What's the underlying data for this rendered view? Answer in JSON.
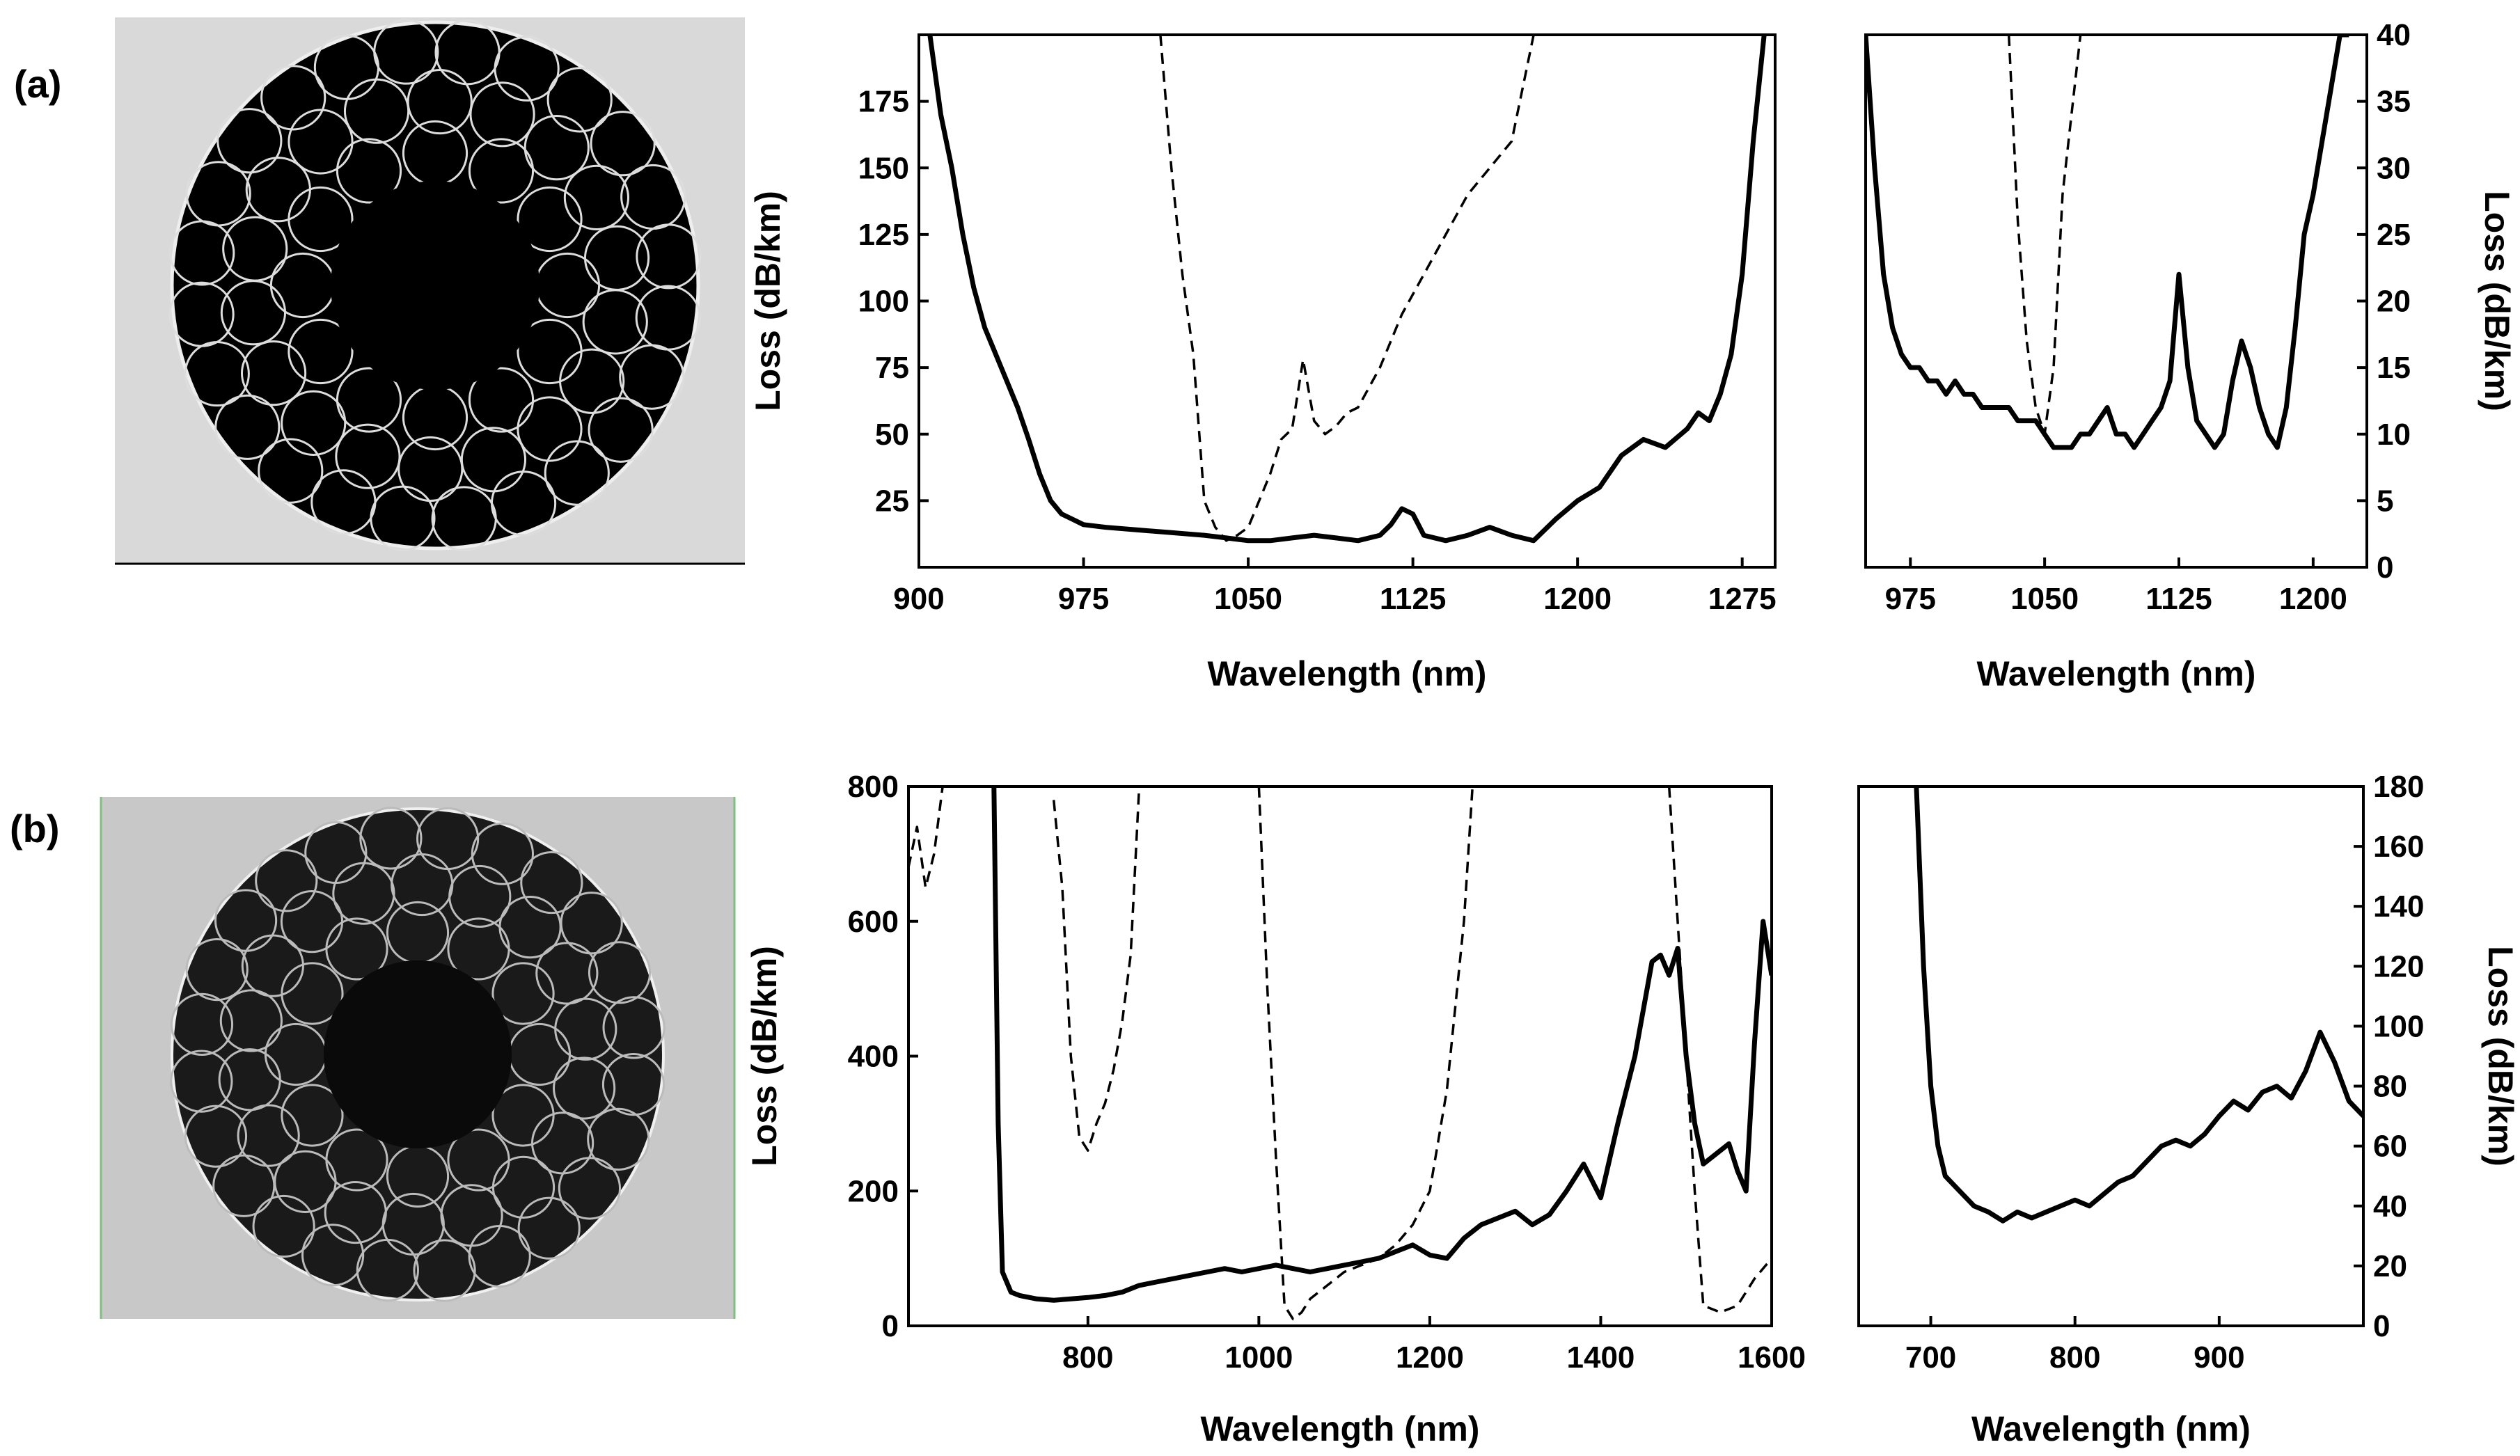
{
  "panel_labels": [
    "(a)",
    "(b)"
  ],
  "chart_data": [
    {
      "type": "line",
      "panel": "(a)",
      "xlabel": "Wavelength (nm)",
      "ylabel": "Loss (dB/km)",
      "xlim": [
        900,
        1290
      ],
      "ylim": [
        0,
        200
      ],
      "xticks": [
        900,
        975,
        1050,
        1125,
        1200,
        1275
      ],
      "yticks": [
        25,
        50,
        75,
        100,
        125,
        150,
        175
      ],
      "grid": false,
      "series": [
        {
          "style": "solid",
          "x": [
            905,
            910,
            915,
            920,
            925,
            930,
            935,
            940,
            945,
            950,
            955,
            960,
            965,
            970,
            975,
            985,
            1000,
            1015,
            1030,
            1040,
            1050,
            1060,
            1070,
            1080,
            1090,
            1100,
            1110,
            1115,
            1120,
            1125,
            1130,
            1140,
            1150,
            1160,
            1170,
            1180,
            1190,
            1200,
            1210,
            1220,
            1230,
            1240,
            1250,
            1255,
            1260,
            1265,
            1270,
            1275,
            1280,
            1285
          ],
          "y": [
            200,
            170,
            150,
            125,
            105,
            90,
            80,
            70,
            60,
            48,
            35,
            25,
            20,
            18,
            16,
            15,
            14,
            13,
            12,
            11,
            10,
            10,
            11,
            12,
            11,
            10,
            12,
            16,
            22,
            20,
            12,
            10,
            12,
            15,
            12,
            10,
            18,
            25,
            30,
            42,
            48,
            45,
            52,
            58,
            55,
            65,
            80,
            110,
            160,
            200
          ]
        },
        {
          "style": "dashed",
          "x": [
            1010,
            1015,
            1020,
            1025,
            1030,
            1035,
            1040,
            1045,
            1050,
            1055,
            1060,
            1065,
            1070,
            1075,
            1080,
            1085,
            1090,
            1095,
            1100,
            1110,
            1120,
            1130,
            1140,
            1150,
            1160,
            1170,
            1180
          ],
          "y": [
            200,
            150,
            110,
            80,
            25,
            15,
            10,
            12,
            15,
            25,
            35,
            48,
            52,
            78,
            55,
            50,
            53,
            58,
            60,
            75,
            95,
            110,
            125,
            140,
            150,
            160,
            200
          ]
        }
      ]
    },
    {
      "type": "line",
      "panel": "(a)",
      "xlabel": "Wavelength (nm)",
      "ylabel": "Loss (dB/km)",
      "xlim": [
        950,
        1230
      ],
      "ylim": [
        0,
        40
      ],
      "xticks": [
        975,
        1050,
        1125,
        1200
      ],
      "yticks": [
        0,
        5,
        10,
        15,
        20,
        25,
        30,
        35,
        40
      ],
      "grid": false,
      "series": [
        {
          "style": "solid",
          "x": [
            950,
            955,
            960,
            965,
            970,
            975,
            980,
            985,
            990,
            995,
            1000,
            1005,
            1010,
            1015,
            1020,
            1025,
            1030,
            1035,
            1040,
            1045,
            1050,
            1055,
            1060,
            1065,
            1070,
            1075,
            1080,
            1085,
            1090,
            1095,
            1100,
            1105,
            1110,
            1115,
            1120,
            1125,
            1130,
            1135,
            1140,
            1145,
            1150,
            1155,
            1160,
            1165,
            1170,
            1175,
            1180,
            1185,
            1190,
            1195,
            1200,
            1205,
            1210,
            1215,
            1220
          ],
          "y": [
            40,
            30,
            22,
            18,
            16,
            15,
            15,
            14,
            14,
            13,
            14,
            13,
            13,
            12,
            12,
            12,
            12,
            11,
            11,
            11,
            10,
            9,
            9,
            9,
            10,
            10,
            11,
            12,
            10,
            10,
            9,
            10,
            11,
            12,
            14,
            22,
            15,
            11,
            10,
            9,
            10,
            14,
            17,
            15,
            12,
            10,
            9,
            12,
            18,
            25,
            28,
            32,
            36,
            40,
            40
          ]
        },
        {
          "style": "dashed",
          "x": [
            1030,
            1035,
            1040,
            1045,
            1050,
            1055,
            1060,
            1065,
            1070
          ],
          "y": [
            40,
            26,
            17,
            12,
            10,
            15,
            28,
            34,
            40
          ]
        }
      ]
    },
    {
      "type": "line",
      "panel": "(b)",
      "xlabel": "Wavelength (nm)",
      "ylabel": "Loss (dB/km)",
      "xlim": [
        590,
        1600
      ],
      "ylim": [
        0,
        800
      ],
      "xticks": [
        800,
        1000,
        1200,
        1400,
        1600
      ],
      "yticks": [
        0,
        200,
        400,
        600,
        800
      ],
      "grid": false,
      "series": [
        {
          "style": "solid",
          "x": [
            690,
            695,
            700,
            710,
            720,
            740,
            760,
            780,
            800,
            820,
            840,
            860,
            880,
            900,
            920,
            940,
            960,
            980,
            1000,
            1020,
            1040,
            1060,
            1080,
            1100,
            1120,
            1140,
            1160,
            1180,
            1200,
            1220,
            1240,
            1260,
            1280,
            1300,
            1320,
            1340,
            1360,
            1380,
            1400,
            1420,
            1440,
            1460,
            1470,
            1480,
            1490,
            1500,
            1510,
            1520,
            1540,
            1550,
            1560,
            1570,
            1580,
            1590,
            1600
          ],
          "y": [
            800,
            300,
            80,
            50,
            45,
            40,
            38,
            40,
            42,
            45,
            50,
            60,
            65,
            70,
            75,
            80,
            85,
            80,
            85,
            90,
            85,
            80,
            85,
            90,
            95,
            100,
            110,
            120,
            105,
            100,
            130,
            150,
            160,
            170,
            150,
            165,
            200,
            240,
            190,
            300,
            400,
            540,
            550,
            520,
            560,
            400,
            300,
            240,
            260,
            270,
            230,
            200,
            420,
            600,
            520
          ]
        },
        {
          "style": "dashed",
          "x": [
            590,
            600,
            610,
            620,
            630
          ],
          "y": [
            680,
            740,
            650,
            700,
            800
          ]
        },
        {
          "style": "dashed",
          "x": [
            760,
            770,
            780,
            790,
            800,
            810,
            820,
            830,
            840,
            850,
            860
          ],
          "y": [
            780,
            650,
            400,
            280,
            260,
            300,
            330,
            380,
            450,
            550,
            800
          ]
        },
        {
          "style": "dashed",
          "x": [
            1000,
            1010,
            1020,
            1030,
            1040,
            1050,
            1060,
            1080,
            1100,
            1120,
            1140,
            1160,
            1180,
            1200,
            1220,
            1240,
            1250
          ],
          "y": [
            800,
            500,
            250,
            30,
            10,
            20,
            40,
            60,
            80,
            90,
            100,
            120,
            150,
            200,
            350,
            600,
            800
          ]
        },
        {
          "style": "dashed",
          "x": [
            1480,
            1490,
            1500,
            1510,
            1520,
            1540,
            1560,
            1580,
            1600
          ],
          "y": [
            800,
            600,
            400,
            200,
            30,
            20,
            30,
            70,
            100
          ]
        }
      ]
    },
    {
      "type": "line",
      "panel": "(b)",
      "xlabel": "Wavelength (nm)",
      "ylabel": "Loss (dB/km)",
      "xlim": [
        650,
        1000
      ],
      "ylim": [
        0,
        180
      ],
      "xticks": [
        700,
        800,
        900
      ],
      "yticks": [
        0,
        20,
        40,
        60,
        80,
        100,
        120,
        140,
        160,
        180
      ],
      "grid": false,
      "series": [
        {
          "style": "solid",
          "x": [
            690,
            695,
            700,
            705,
            710,
            720,
            730,
            740,
            750,
            760,
            770,
            780,
            790,
            800,
            810,
            820,
            830,
            840,
            850,
            860,
            870,
            880,
            890,
            900,
            910,
            920,
            930,
            940,
            950,
            960,
            970,
            980,
            990,
            1000
          ],
          "y": [
            180,
            120,
            80,
            60,
            50,
            45,
            40,
            38,
            35,
            38,
            36,
            38,
            40,
            42,
            40,
            44,
            48,
            50,
            55,
            60,
            62,
            60,
            64,
            70,
            75,
            72,
            78,
            80,
            76,
            85,
            98,
            88,
            75,
            70
          ]
        }
      ]
    }
  ]
}
